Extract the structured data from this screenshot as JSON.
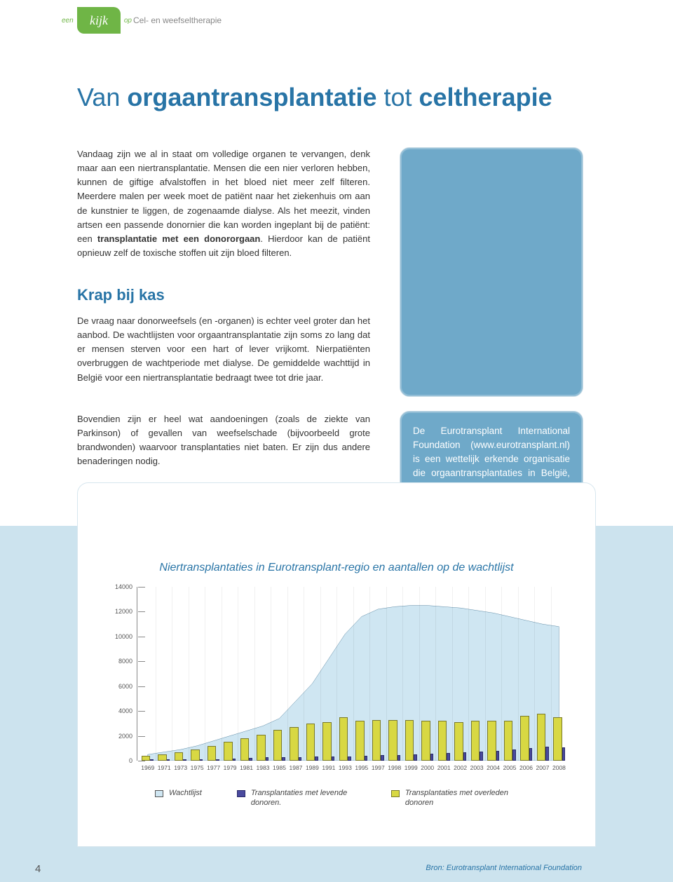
{
  "header": {
    "logo_een": "een",
    "logo_text": "kijk",
    "logo_op": "op",
    "subtitle": "Cel- en weefseltherapie"
  },
  "title": {
    "pre": "Van ",
    "b1": "orgaantransplantatie",
    "mid": " tot ",
    "b2": "celtherapie"
  },
  "para1_pre": "Vandaag zijn we al in staat om volledige organen te vervangen, denk maar aan een niertransplantatie. Mensen die een nier verloren hebben, kunnen de giftige afvalstoffen in het bloed niet meer zelf filteren. Meerdere malen per week moet de patiënt naar het ziekenhuis om aan de kunstnier te liggen, de zogenaamde dialyse. Als het meezit, vinden artsen een passende donornier die kan worden ingeplant bij de patiënt: een ",
  "para1_bold": "transplantatie met een donororgaan",
  "para1_post": ". Hierdoor kan de patiënt opnieuw zelf de toxische stoffen uit zijn bloed filteren.",
  "h2": "Krap bij kas",
  "para2": "De vraag naar donorweefsels (en -organen) is echter veel groter dan het aanbod. De wachtlijsten voor orgaantransplantatie zijn soms zo lang dat er mensen sterven voor een hart of lever vrijkomt. Nierpatiënten overbruggen de wachtperiode met dialyse. De gemiddelde wachttijd in België voor een niertransplantatie bedraagt twee tot drie jaar.",
  "para3": "Bovendien zijn er heel wat aandoeningen (zoals de ziekte van Parkinson) of gevallen van weefselschade (bijvoorbeeld grote brandwonden) waarvoor transplantaties niet baten. Er zijn dus andere benaderingen nodig.",
  "bluebox2": "De Eurotransplant International Foundation (www.eurotransplant.nl) is een wettelijk erkende organisatie die orgaantransplantaties in België, Nederland, Luxemburg, Duitsland, Oostenrijk, Kroatië en Slovenië coördineert.",
  "chart": {
    "title": "Niertransplantaties in Eurotransplant-regio en aantallen op de wachtlijst",
    "type": "combo-area-bar",
    "ylim": [
      0,
      14000
    ],
    "ytick_step": 2000,
    "y_ticks": [
      0,
      2000,
      4000,
      6000,
      8000,
      10000,
      12000,
      14000
    ],
    "area_color": "#cfe6f2",
    "area_stroke": "#3a6f8f",
    "bar_deceased_color": "#d8d843",
    "bar_deceased_border": "#7a7a2a",
    "bar_living_color": "#4a4a9e",
    "bar_living_border": "#2a2a6a",
    "grid_color": "#dddddd",
    "axis_color": "#888888",
    "label_fontsize": 9,
    "years": [
      "1969",
      "1971",
      "1973",
      "1975",
      "1977",
      "1979",
      "1981",
      "1983",
      "1985",
      "1987",
      "1989",
      "1991",
      "1993",
      "1995",
      "1997",
      "1998",
      "1999",
      "2000",
      "2001",
      "2002",
      "2003",
      "2004",
      "2005",
      "2006",
      "2007",
      "2008"
    ],
    "waitlist": [
      500,
      700,
      900,
      1200,
      1600,
      2000,
      2400,
      2800,
      3400,
      4800,
      6200,
      8200,
      10200,
      11600,
      12200,
      12400,
      12500,
      12500,
      12400,
      12300,
      12100,
      11900,
      11600,
      11300,
      11000,
      10800
    ],
    "deceased": [
      400,
      500,
      700,
      900,
      1200,
      1500,
      1800,
      2100,
      2500,
      2700,
      3000,
      3100,
      3500,
      3200,
      3300,
      3300,
      3300,
      3200,
      3200,
      3100,
      3200,
      3200,
      3200,
      3600,
      3800,
      3500
    ],
    "living": [
      50,
      60,
      80,
      110,
      140,
      180,
      220,
      260,
      300,
      300,
      320,
      330,
      360,
      380,
      430,
      460,
      530,
      560,
      640,
      700,
      750,
      800,
      880,
      1000,
      1150,
      1100
    ],
    "legend": {
      "wait": "Wachtlijst",
      "living": "Transplantaties met levende donoren.",
      "deceased": "Transplantaties met overleden donoren"
    },
    "source": "Bron: Eurotransplant International Foundation"
  },
  "page_number": "4"
}
